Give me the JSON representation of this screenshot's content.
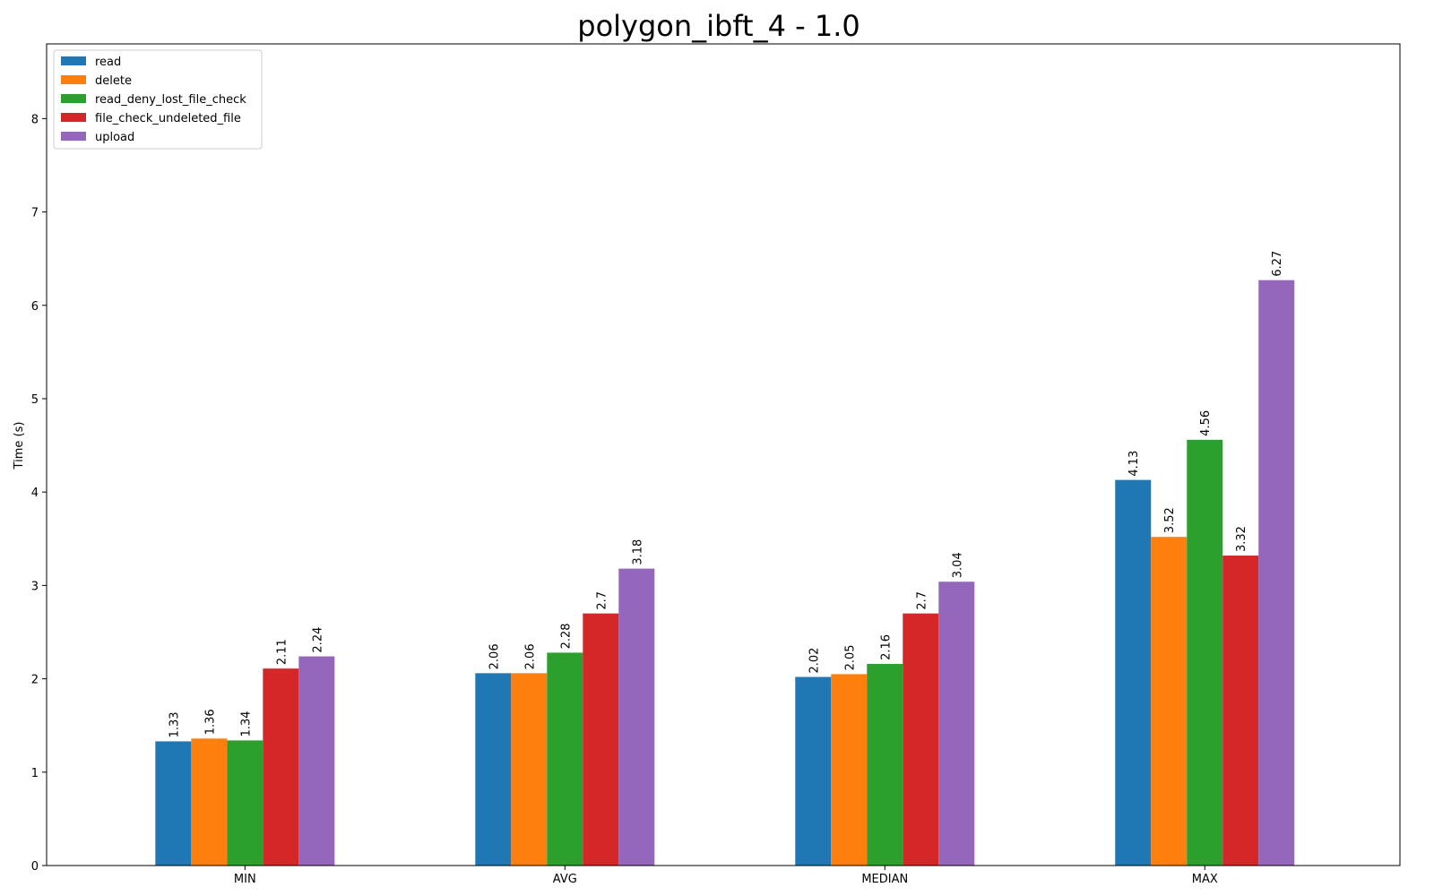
{
  "chart_data": {
    "type": "bar",
    "title": "polygon_ibft_4 - 1.0",
    "xlabel": "",
    "ylabel": "Time (s)",
    "ylim": [
      0,
      8.8
    ],
    "yticks": [
      0,
      1,
      2,
      3,
      4,
      5,
      6,
      7,
      8
    ],
    "categories": [
      "MIN",
      "AVG",
      "MEDIAN",
      "MAX"
    ],
    "legend_position": "upper-left",
    "grid": false,
    "series": [
      {
        "name": "read",
        "color": "#1f77b4",
        "values": [
          1.33,
          2.06,
          2.02,
          4.13
        ],
        "labels": [
          "1.33",
          "2.06",
          "2.02",
          "4.13"
        ]
      },
      {
        "name": "delete",
        "color": "#ff7f0e",
        "values": [
          1.36,
          2.06,
          2.05,
          3.52
        ],
        "labels": [
          "1.36",
          "2.06",
          "2.05",
          "3.52"
        ]
      },
      {
        "name": "read_deny_lost_file_check",
        "color": "#2ca02c",
        "values": [
          1.34,
          2.28,
          2.16,
          4.56
        ],
        "labels": [
          "1.34",
          "2.28",
          "2.16",
          "4.56"
        ]
      },
      {
        "name": "file_check_undeleted_file",
        "color": "#d62728",
        "values": [
          2.11,
          2.7,
          2.7,
          3.32
        ],
        "labels": [
          "2.11",
          "2.7",
          "2.7",
          "3.32"
        ]
      },
      {
        "name": "upload",
        "color": "#9467bd",
        "values": [
          2.24,
          3.18,
          3.04,
          6.27
        ],
        "labels": [
          "2.24",
          "3.18",
          "3.04",
          "6.27"
        ]
      }
    ]
  }
}
